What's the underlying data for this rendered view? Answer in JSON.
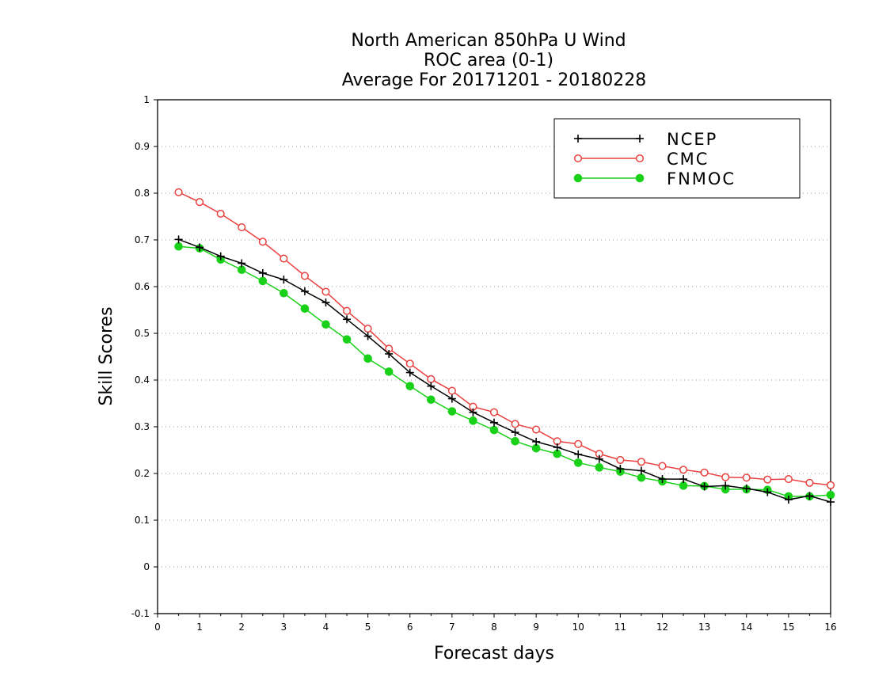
{
  "chart_data": {
    "type": "line",
    "title": [
      "North American 850hPa U Wind",
      "ROC area (0-1)",
      "Average For 20171201 - 20180228"
    ],
    "xlabel": "Forecast days",
    "ylabel": "Skill Scores",
    "xlim": [
      0,
      16
    ],
    "ylim": [
      -0.1,
      1
    ],
    "xticks": [
      0,
      1,
      2,
      3,
      4,
      5,
      6,
      7,
      8,
      9,
      10,
      11,
      12,
      13,
      14,
      15,
      16
    ],
    "yticks": [
      -0.1,
      0,
      0.1,
      0.2,
      0.3,
      0.4,
      0.5,
      0.6,
      0.7,
      0.8,
      0.9,
      1
    ],
    "ytick_labels": [
      "-0.1",
      "0",
      "0.1",
      "0.2",
      "0.3",
      "0.4",
      "0.5",
      "0.6",
      "0.7",
      "0.8",
      "0.9",
      "1"
    ],
    "grid": "horizontal dotted",
    "legend_position": "top-right",
    "x": [
      0.5,
      1,
      1.5,
      2,
      2.5,
      3,
      3.5,
      4,
      4.5,
      5,
      5.5,
      6,
      6.5,
      7,
      7.5,
      8,
      8.5,
      9,
      9.5,
      10,
      10.5,
      11,
      11.5,
      12,
      12.5,
      13,
      13.5,
      14,
      14.5,
      15,
      15.5,
      16
    ],
    "series": [
      {
        "name": "NCEP",
        "color": "#000000",
        "marker": "plus",
        "values": [
          0.701,
          0.684,
          0.665,
          0.65,
          0.629,
          0.615,
          0.59,
          0.566,
          0.53,
          0.494,
          0.456,
          0.416,
          0.387,
          0.36,
          0.331,
          0.309,
          0.288,
          0.268,
          0.256,
          0.241,
          0.231,
          0.21,
          0.206,
          0.188,
          0.188,
          0.172,
          0.174,
          0.168,
          0.16,
          0.144,
          0.152,
          0.139
        ]
      },
      {
        "name": "CMC",
        "color": "#e8413f",
        "marker": "open-circle",
        "values": [
          0.802,
          0.781,
          0.756,
          0.727,
          0.696,
          0.66,
          0.623,
          0.589,
          0.548,
          0.51,
          0.467,
          0.435,
          0.402,
          0.377,
          0.343,
          0.331,
          0.306,
          0.294,
          0.269,
          0.263,
          0.242,
          0.229,
          0.225,
          0.216,
          0.208,
          0.202,
          0.192,
          0.191,
          0.187,
          0.188,
          0.18,
          0.175
        ]
      },
      {
        "name": "FNMOC",
        "color": "#19d119",
        "marker": "filled-circle",
        "values": [
          0.686,
          0.682,
          0.658,
          0.636,
          0.612,
          0.586,
          0.553,
          0.519,
          0.487,
          0.446,
          0.418,
          0.387,
          0.358,
          0.333,
          0.313,
          0.293,
          0.269,
          0.254,
          0.242,
          0.223,
          0.213,
          0.204,
          0.191,
          0.183,
          0.174,
          0.173,
          0.166,
          0.166,
          0.165,
          0.151,
          0.151,
          0.154
        ]
      }
    ]
  }
}
